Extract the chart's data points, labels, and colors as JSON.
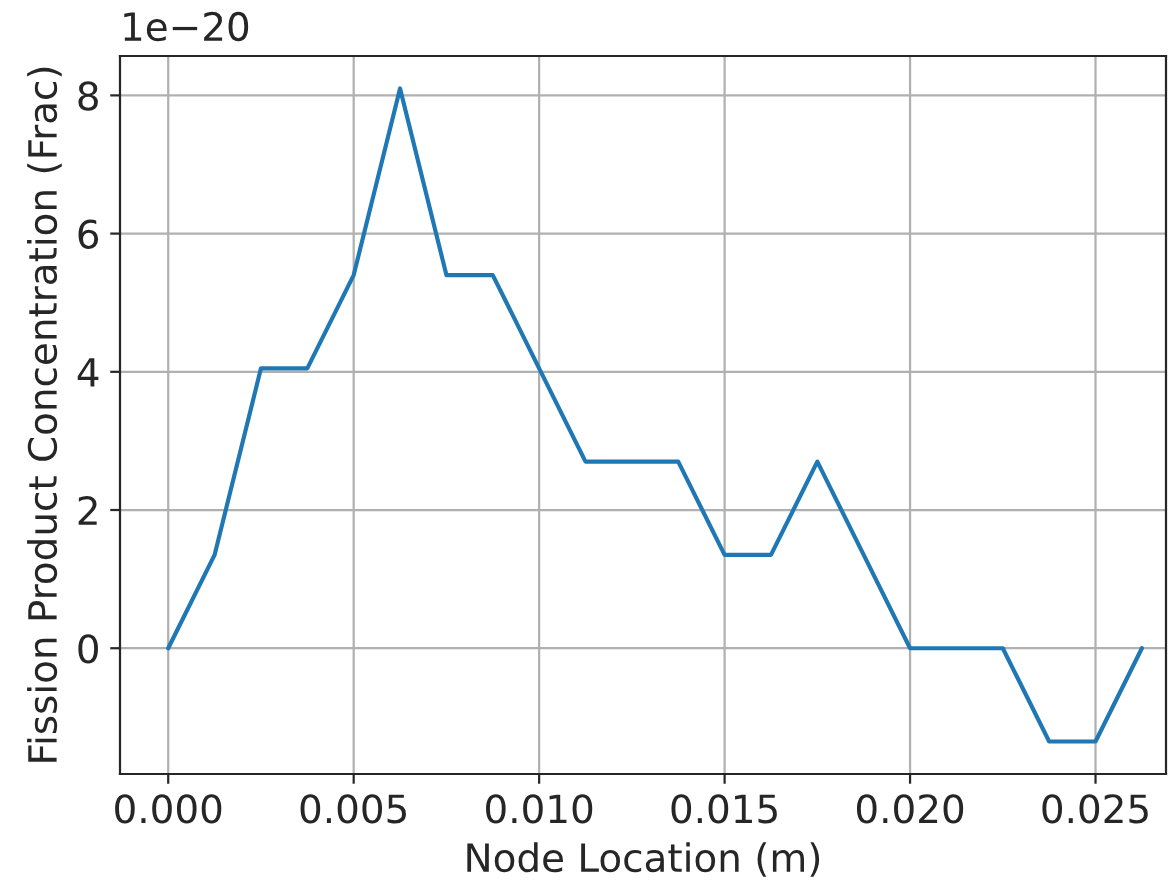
{
  "chart_data": {
    "type": "line",
    "xlabel": "Node Location (m)",
    "ylabel": "Fission Product Concentration (Frac)",
    "annotations": [
      "1e−20"
    ],
    "x": [
      0,
      0.00125,
      0.0025,
      0.00375,
      0.005,
      0.00625,
      0.0075,
      0.00875,
      0.01,
      0.01125,
      0.0125,
      0.01375,
      0.015,
      0.01625,
      0.0175,
      0.01875,
      0.02,
      0.02125,
      0.0225,
      0.02375,
      0.025,
      0.02625
    ],
    "series": [
      {
        "color": "#1f77b4",
        "values": [
          0,
          1.35,
          4.05,
          4.05,
          5.4,
          8.1,
          5.4,
          5.4,
          4.05,
          2.7,
          2.7,
          2.7,
          1.35,
          1.35,
          2.7,
          1.35,
          0,
          0,
          0,
          -1.35,
          -1.35,
          0
        ]
      }
    ],
    "xlim": [
      -0.0013,
      0.0269
    ],
    "ylim": [
      -1.82,
      8.57
    ],
    "xticks": [
      {
        "value": 0,
        "label": "0.000"
      },
      {
        "value": 0.005,
        "label": "0.005"
      },
      {
        "value": 0.01,
        "label": "0.010"
      },
      {
        "value": 0.015,
        "label": "0.015"
      },
      {
        "value": 0.02,
        "label": "0.020"
      },
      {
        "value": 0.025,
        "label": "0.025"
      }
    ],
    "yticks": [
      0,
      2,
      4,
      6,
      8
    ],
    "grid": true,
    "line_style": "solid"
  }
}
